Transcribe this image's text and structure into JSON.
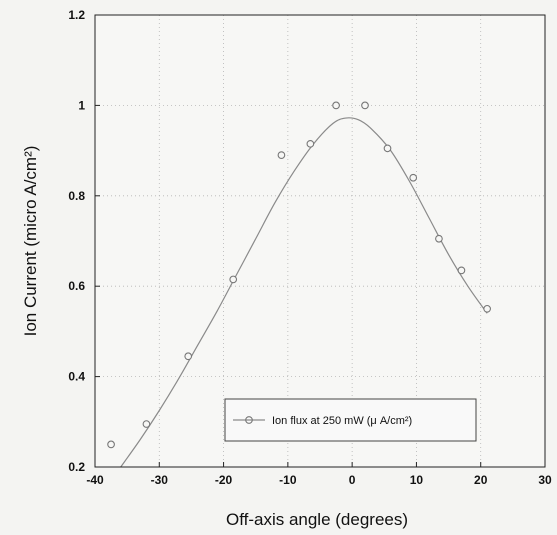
{
  "chart_data": {
    "type": "scatter",
    "xlabel": "Off-axis angle (degrees)",
    "ylabel": "Ion Current (micro A/cm²)",
    "xlim": [
      -40,
      30
    ],
    "ylim": [
      0.2,
      1.2
    ],
    "x_ticks": [
      -40,
      -30,
      -20,
      -10,
      0,
      10,
      20,
      30
    ],
    "x_tick_labels": [
      "-40",
      "-30",
      "-20",
      "-10",
      "0",
      "10",
      "20",
      "30"
    ],
    "y_ticks": [
      0.2,
      0.4,
      0.6,
      0.8,
      1.0,
      1.2
    ],
    "y_tick_labels": [
      "0.2",
      "0.4",
      "0.6",
      "0.8",
      "1",
      "1.2"
    ],
    "grid": true,
    "legend_position": "bottom-right",
    "colors": {
      "line": "#8a8a8a",
      "marker": "#777777",
      "axis": "#222222",
      "grid": "#b5b5b5"
    },
    "series": [
      {
        "name": "Ion flux at 250 mW (μ A/cm²)",
        "marker": "circle-open",
        "x": [
          -37.5,
          -32,
          -25.5,
          -18.5,
          -11,
          -6.5,
          -2.5,
          2,
          5.5,
          9.5,
          13.5,
          17,
          21
        ],
        "y": [
          0.25,
          0.295,
          0.445,
          0.615,
          0.89,
          0.915,
          1.0,
          1.0,
          0.905,
          0.84,
          0.705,
          0.635,
          0.55
        ]
      },
      {
        "type": "line",
        "x": [
          -36,
          -33,
          -30,
          -27,
          -24,
          -21,
          -18,
          -15,
          -12,
          -9,
          -6,
          -3,
          -1,
          1,
          3,
          6,
          9,
          12,
          15,
          18,
          21
        ],
        "y": [
          0.2,
          0.26,
          0.325,
          0.395,
          0.47,
          0.545,
          0.625,
          0.705,
          0.785,
          0.855,
          0.915,
          0.96,
          0.972,
          0.968,
          0.948,
          0.9,
          0.83,
          0.75,
          0.67,
          0.6,
          0.54
        ]
      }
    ]
  }
}
